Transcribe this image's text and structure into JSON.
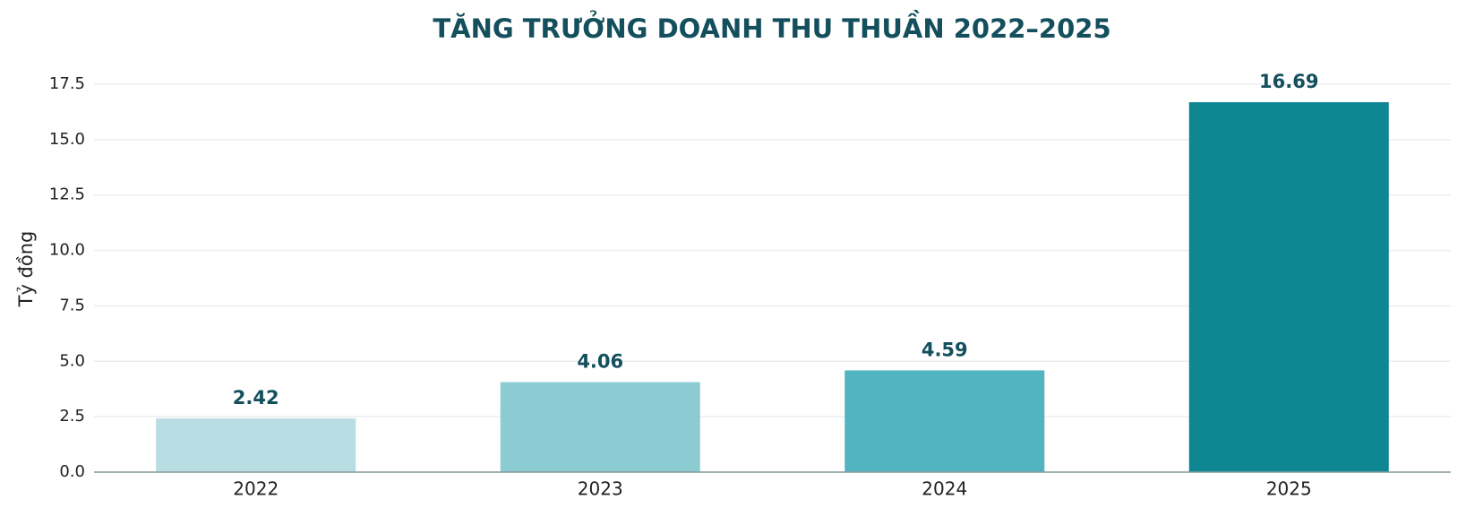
{
  "chart_data": {
    "type": "bar",
    "title": "TĂNG TRƯỞNG DOANH THU THUẦN 2022–2025",
    "y_label": "Tỷ đồng",
    "categories": [
      "2022",
      "2023",
      "2024",
      "2025"
    ],
    "values": [
      2.42,
      4.06,
      4.59,
      16.69
    ],
    "colors": [
      "#b8dde2",
      "#8ccbd1",
      "#52b4c0",
      "#0f8793"
    ],
    "ylim": [
      0,
      18.5
    ],
    "yticks": [
      {
        "value": 0,
        "label": "0.0"
      },
      2.5,
      {
        "value": 5,
        "label": "5.0"
      },
      7.5,
      {
        "value": 10,
        "label": "10.0"
      },
      12.5,
      {
        "value": 15,
        "label": "15.0"
      },
      17.5
    ],
    "grid": true
  }
}
